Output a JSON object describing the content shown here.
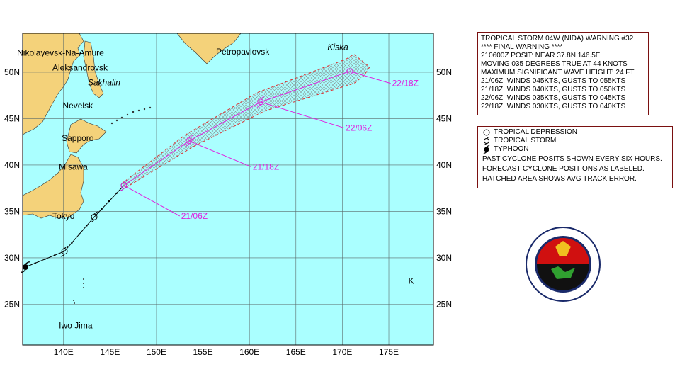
{
  "map": {
    "lon_labels": [
      "140E",
      "145E",
      "150E",
      "155E",
      "160E",
      "165E",
      "170E",
      "175E"
    ],
    "lat_labels": [
      "50N",
      "45N",
      "40N",
      "35N",
      "30N",
      "25N"
    ],
    "places": [
      {
        "name": "Nikolayevsk-Na-Amure",
        "lon": 135.0,
        "lat": 51.8
      },
      {
        "name": "Aleksandrovsk",
        "lon": 138.8,
        "lat": 50.2
      },
      {
        "name": "Sakhalin",
        "lon": 142.6,
        "lat": 48.6
      },
      {
        "name": "Nevelsk",
        "lon": 139.9,
        "lat": 46.1
      },
      {
        "name": "Sapporo",
        "lon": 139.8,
        "lat": 42.6
      },
      {
        "name": "Misawa",
        "lon": 139.5,
        "lat": 39.5
      },
      {
        "name": "Tokyo",
        "lon": 138.8,
        "lat": 34.2
      },
      {
        "name": "Iwo Jima",
        "lon": 139.5,
        "lat": 22.4
      },
      {
        "name": "Petropavlovsk",
        "lon": 156.4,
        "lat": 51.9
      },
      {
        "name": "Kiska",
        "lon": 168.4,
        "lat": 52.4
      },
      {
        "name": "K",
        "lon": 177.1,
        "lat": 27.2
      }
    ],
    "past_track": [
      {
        "lon": 135.9,
        "lat": 29.0,
        "cat": "typhoon"
      },
      {
        "lon": 140.1,
        "lat": 30.7,
        "cat": "storm"
      },
      {
        "lon": 143.3,
        "lat": 34.4,
        "cat": "storm"
      },
      {
        "lon": 146.5,
        "lat": 37.8,
        "cat": "storm"
      }
    ],
    "forecast_track": [
      {
        "lon": 146.5,
        "lat": 37.8,
        "cat": "storm",
        "label": "21/06Z",
        "label_lon": 152.5,
        "label_lat": 34.5
      },
      {
        "lon": 153.5,
        "lat": 42.6,
        "cat": "storm",
        "label": "21/18Z",
        "label_lon": 160.2,
        "label_lat": 39.8
      },
      {
        "lon": 161.2,
        "lat": 46.8,
        "cat": "storm",
        "label": "22/06Z",
        "label_lon": 170.2,
        "label_lat": 44.0
      },
      {
        "lon": 170.8,
        "lat": 50.1,
        "cat": "depression",
        "label": "22/18Z",
        "label_lon": 175.2,
        "label_lat": 48.8
      }
    ]
  },
  "warning": {
    "lines": [
      "TROPICAL STORM 04W (NIDA) WARNING #32",
      "**** FINAL WARNING ****",
      "210600Z POSIT: NEAR 37.8N 146.5E",
      "MOVING 035 DEGREES TRUE AT 44 KNOTS",
      "MAXIMUM SIGNIFICANT WAVE HEIGHT: 24 FT",
      "21/06Z, WINDS 045KTS, GUSTS TO 055KTS",
      "21/18Z, WINDS 040KTS, GUSTS TO 050KTS",
      "22/06Z, WINDS 035KTS, GUSTS TO 045KTS",
      "22/18Z, WINDS 030KTS, GUSTS TO 040KTS"
    ]
  },
  "legend": {
    "depression": "TROPICAL DEPRESSION",
    "storm": "TROPICAL STORM",
    "typhoon": "TYPHOON",
    "note1": "PAST CYCLONE POSITS SHOWN EVERY SIX HOURS.",
    "note2": "FORECAST CYCLONE POSITIONS AS LABELED.",
    "note3": "HATCHED AREA SHOWS AVG TRACK ERROR."
  },
  "colors": {
    "ocean": "#aaffff",
    "land": "#f4d27a",
    "grid": "#5a6a6a",
    "forecast": "#e020e0",
    "error_cone": "#e03030",
    "panel_border": "#7a1010"
  }
}
